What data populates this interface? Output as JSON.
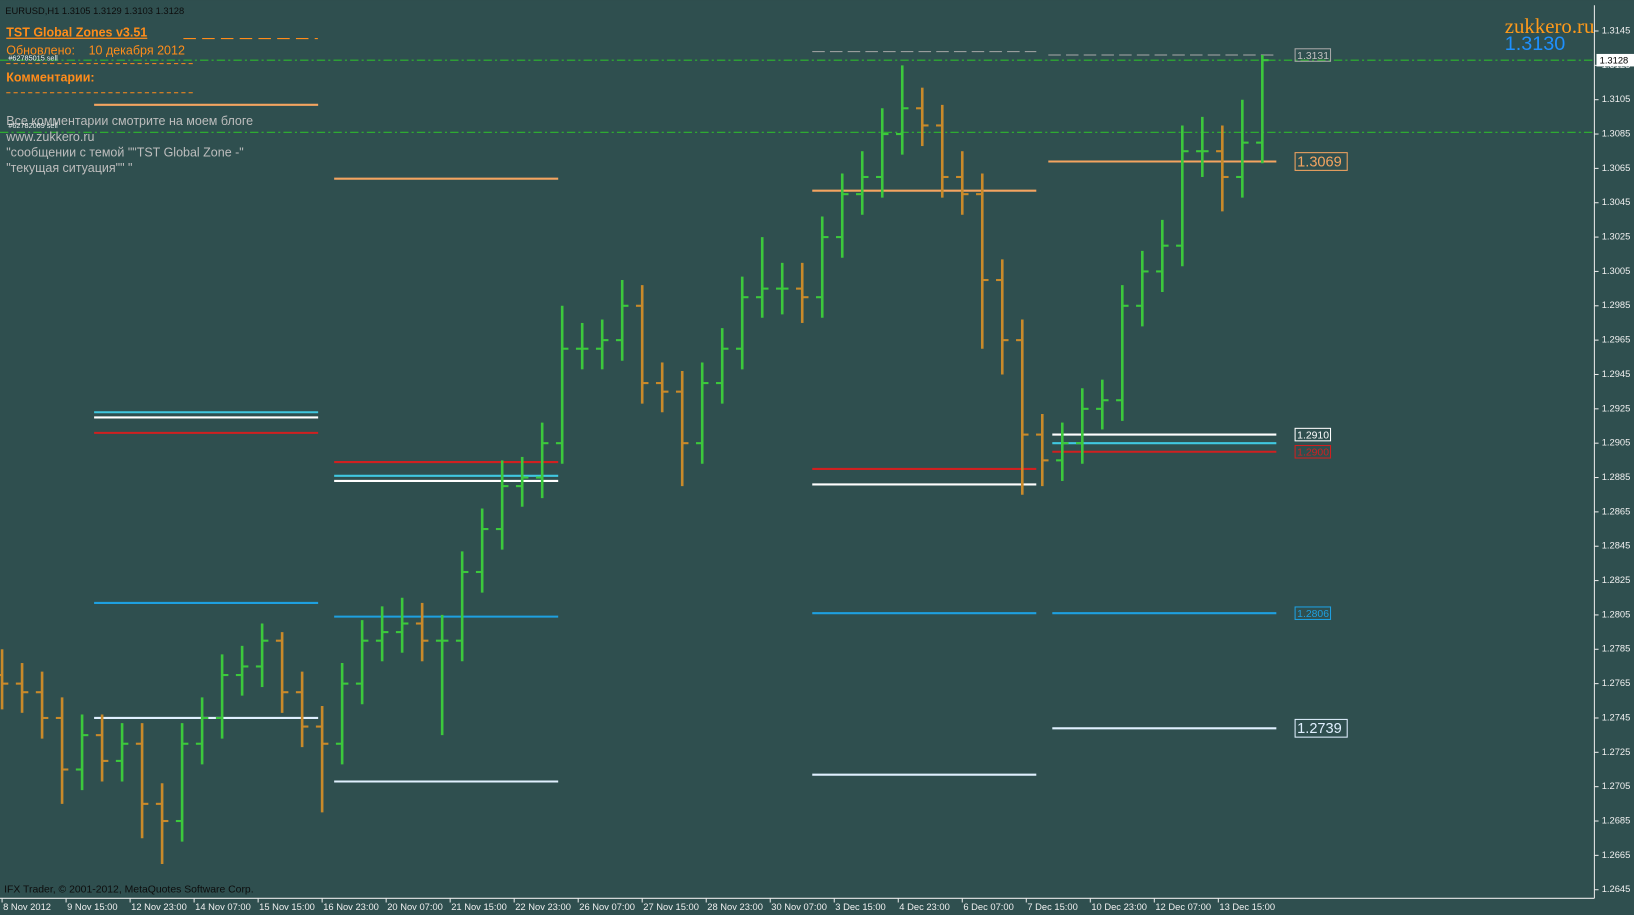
{
  "header": {
    "symbol_line": "EURUSD,H1  1.3105 1.3129 1.3103 1.3128",
    "indicator": "TST Global Zones  v3.51",
    "updated_label": "Обновлено:",
    "updated_date": "10 декабря 2012",
    "order1": "#62785015 sell",
    "comments_title": "Комментарии:",
    "order2": "#62782069 sell",
    "comments": [
      "Все комментарии смотрите на моем блоге",
      "www.zukkero.ru",
      "\"сообщении с темой \"\"TST Global Zone -\"",
      "\"текущая ситуация\"\" \""
    ],
    "brand": "zukkero.ru",
    "brand_price": "1.3130",
    "footer": "IFX Trader, © 2001-2012, MetaQuotes Software Corp."
  },
  "chart_data": {
    "type": "ohlc",
    "up_color": "#3cc83c",
    "down_color": "#c98a2a",
    "x": [
      0,
      10,
      20,
      30,
      40,
      50,
      60,
      70,
      80,
      90,
      100,
      110,
      120,
      130,
      140,
      150,
      160,
      170,
      180,
      190,
      200,
      210,
      220,
      230,
      240,
      250,
      260,
      270,
      280,
      290,
      300,
      310,
      320,
      330,
      340,
      350,
      360,
      370,
      380,
      390,
      400,
      410,
      420,
      430,
      440,
      450,
      460,
      470,
      480,
      490,
      500,
      510,
      520,
      530,
      540,
      550,
      560,
      570,
      580,
      590,
      600,
      610,
      620,
      630
    ],
    "open": [
      1.277,
      1.2765,
      1.276,
      1.2745,
      1.2715,
      1.2735,
      1.272,
      1.273,
      1.2695,
      1.2685,
      1.273,
      1.2745,
      1.277,
      1.2775,
      1.279,
      1.276,
      1.274,
      1.273,
      1.2765,
      1.279,
      1.2795,
      1.28,
      1.279,
      1.279,
      1.283,
      1.2855,
      1.288,
      1.2885,
      1.2905,
      1.296,
      1.296,
      1.2965,
      1.2985,
      1.294,
      1.2935,
      1.2905,
      1.294,
      1.296,
      1.299,
      1.2995,
      1.2995,
      1.299,
      1.3025,
      1.305,
      1.306,
      1.3085,
      1.31,
      1.309,
      1.306,
      1.305,
      1.3,
      1.2965,
      1.291,
      1.2895,
      1.2905,
      1.2925,
      1.293,
      1.2985,
      1.3005,
      1.302,
      1.3075,
      1.3075,
      1.306,
      1.308
    ],
    "high": [
      1.2785,
      1.2777,
      1.2772,
      1.2757,
      1.2747,
      1.2747,
      1.2742,
      1.2742,
      1.2707,
      1.2742,
      1.2757,
      1.2782,
      1.2787,
      1.28,
      1.2795,
      1.2772,
      1.2752,
      1.2777,
      1.2802,
      1.281,
      1.2815,
      1.2812,
      1.2805,
      1.2842,
      1.2867,
      1.2895,
      1.2897,
      1.2917,
      1.2985,
      1.2975,
      1.2977,
      1.3,
      1.2997,
      1.2952,
      1.2947,
      1.2952,
      1.2972,
      1.3002,
      1.3025,
      1.301,
      1.301,
      1.3037,
      1.3062,
      1.3075,
      1.31,
      1.3125,
      1.3112,
      1.3102,
      1.3075,
      1.3062,
      1.3012,
      1.2977,
      1.2922,
      1.2917,
      1.2937,
      1.2942,
      1.2997,
      1.3017,
      1.3035,
      1.309,
      1.3095,
      1.309,
      1.3105,
      1.3131
    ],
    "low": [
      1.275,
      1.2748,
      1.2733,
      1.2695,
      1.2703,
      1.2708,
      1.2708,
      1.2675,
      1.266,
      1.2673,
      1.2718,
      1.2733,
      1.2758,
      1.2763,
      1.2748,
      1.2728,
      1.269,
      1.2718,
      1.2753,
      1.2778,
      1.2783,
      1.2778,
      1.2735,
      1.2778,
      1.2818,
      1.2843,
      1.2868,
      1.2873,
      1.2893,
      1.2948,
      1.2948,
      1.2953,
      1.2928,
      1.2923,
      1.288,
      1.2893,
      1.2928,
      1.2948,
      1.2978,
      1.298,
      1.2975,
      1.2978,
      1.3013,
      1.3038,
      1.3048,
      1.3073,
      1.3078,
      1.3048,
      1.3038,
      1.296,
      1.2945,
      1.2875,
      1.288,
      1.2883,
      1.2893,
      1.2913,
      1.2918,
      1.2973,
      1.2993,
      1.3008,
      1.306,
      1.304,
      1.3048,
      1.3068
    ],
    "close": [
      1.2765,
      1.276,
      1.2745,
      1.2715,
      1.2735,
      1.272,
      1.273,
      1.2695,
      1.2685,
      1.273,
      1.2745,
      1.277,
      1.2775,
      1.279,
      1.276,
      1.274,
      1.273,
      1.2765,
      1.279,
      1.2795,
      1.28,
      1.279,
      1.279,
      1.283,
      1.2855,
      1.288,
      1.2885,
      1.2905,
      1.296,
      1.296,
      1.2965,
      1.2985,
      1.294,
      1.2935,
      1.2905,
      1.294,
      1.296,
      1.299,
      1.2995,
      1.2995,
      1.299,
      1.3025,
      1.305,
      1.306,
      1.3085,
      1.31,
      1.309,
      1.306,
      1.305,
      1.3,
      1.2965,
      1.291,
      1.2895,
      1.2905,
      1.2925,
      1.293,
      1.2985,
      1.3005,
      1.302,
      1.3075,
      1.3075,
      1.306,
      1.308,
      1.3128
    ],
    "xlim": [
      0,
      796
    ],
    "xticks": [
      {
        "value": 0,
        "label": "8 Nov 2012"
      },
      {
        "value": 32,
        "label": "9 Nov 15:00"
      },
      {
        "value": 64,
        "label": "12 Nov 23:00"
      },
      {
        "value": 96,
        "label": "14 Nov 07:00"
      },
      {
        "value": 128,
        "label": "15 Nov 15:00"
      },
      {
        "value": 160,
        "label": "16 Nov 23:00"
      },
      {
        "value": 192,
        "label": "20 Nov 07:00"
      },
      {
        "value": 224,
        "label": "21 Nov 15:00"
      },
      {
        "value": 256,
        "label": "22 Nov 23:00"
      },
      {
        "value": 288,
        "label": "26 Nov 07:00"
      },
      {
        "value": 320,
        "label": "27 Nov 15:00"
      },
      {
        "value": 352,
        "label": "28 Nov 23:00"
      },
      {
        "value": 384,
        "label": "30 Nov 07:00"
      },
      {
        "value": 416,
        "label": "3 Dec 15:00"
      },
      {
        "value": 448,
        "label": "4 Dec 23:00"
      },
      {
        "value": 480,
        "label": "6 Dec 07:00"
      },
      {
        "value": 512,
        "label": "7 Dec 15:00"
      },
      {
        "value": 544,
        "label": "10 Dec 23:00"
      },
      {
        "value": 576,
        "label": "12 Dec 07:00"
      },
      {
        "value": 608,
        "label": "13 Dec 15:00"
      }
    ],
    "ylim": [
      1.264,
      1.316
    ],
    "yticks": [
      1.2645,
      1.2665,
      1.2685,
      1.2705,
      1.2725,
      1.2745,
      1.2765,
      1.2785,
      1.2805,
      1.2825,
      1.2845,
      1.2865,
      1.2885,
      1.2905,
      1.2925,
      1.2945,
      1.2965,
      1.2985,
      1.3005,
      1.3025,
      1.3045,
      1.3065,
      1.3085,
      1.3105,
      1.3125,
      1.3145
    ],
    "current_price": {
      "value": 1.3128,
      "label": "1.3128"
    },
    "hlines": [
      {
        "price": 1.3128,
        "color": "#2fb82f"
      },
      {
        "price": 1.3086,
        "color": "#2fb82f"
      }
    ],
    "levels": [
      {
        "price": 1.3102,
        "from": 46,
        "to": 158,
        "color": "#f4a460"
      },
      {
        "price": 1.3059,
        "from": 166,
        "to": 278,
        "color": "#f4a460"
      },
      {
        "price": 1.3052,
        "from": 405,
        "to": 517,
        "color": "#f4a460"
      },
      {
        "price": 1.3069,
        "from": 523,
        "to": 637,
        "color": "#f4a460",
        "label": "1.3069"
      },
      {
        "price": 1.2923,
        "from": 46,
        "to": 158,
        "color": "#40c8e0"
      },
      {
        "price": 1.292,
        "from": 46,
        "to": 158,
        "color": "#ffffff"
      },
      {
        "price": 1.2911,
        "from": 46,
        "to": 158,
        "color": "#d02020"
      },
      {
        "price": 1.2894,
        "from": 166,
        "to": 278,
        "color": "#d02020"
      },
      {
        "price": 1.2886,
        "from": 166,
        "to": 278,
        "color": "#40c8e0"
      },
      {
        "price": 1.2883,
        "from": 166,
        "to": 278,
        "color": "#ffffff"
      },
      {
        "price": 1.289,
        "from": 405,
        "to": 517,
        "color": "#d02020"
      },
      {
        "price": 1.2881,
        "from": 405,
        "to": 517,
        "color": "#ffffff"
      },
      {
        "price": 1.291,
        "from": 525,
        "to": 637,
        "color": "#ffffff",
        "label": "1.2910"
      },
      {
        "price": 1.2905,
        "from": 525,
        "to": 637,
        "color": "#40c8e0"
      },
      {
        "price": 1.29,
        "from": 525,
        "to": 637,
        "color": "#d02020",
        "label": "1.2900"
      },
      {
        "price": 1.2812,
        "from": 46,
        "to": 158,
        "color": "#1ea0e0"
      },
      {
        "price": 1.2804,
        "from": 166,
        "to": 278,
        "color": "#1ea0e0"
      },
      {
        "price": 1.2806,
        "from": 405,
        "to": 517,
        "color": "#1ea0e0"
      },
      {
        "price": 1.2806,
        "from": 525,
        "to": 637,
        "color": "#1ea0e0",
        "label": "1.2806"
      },
      {
        "price": 1.2745,
        "from": 46,
        "to": 158,
        "color": "#e0f0ff"
      },
      {
        "price": 1.2708,
        "from": 166,
        "to": 278,
        "color": "#e0f0ff"
      },
      {
        "price": 1.2712,
        "from": 405,
        "to": 517,
        "color": "#e0f0ff"
      },
      {
        "price": 1.2739,
        "from": 525,
        "to": 637,
        "color": "#e0f0ff",
        "label": "1.2739"
      },
      {
        "price": 1.3133,
        "from": 405,
        "to": 517,
        "color": "#a8a8a8",
        "dashed": true
      },
      {
        "price": 1.3131,
        "from": 523,
        "to": 637,
        "color": "#a8a8a8",
        "dashed": true,
        "label": "1.3131"
      }
    ]
  }
}
